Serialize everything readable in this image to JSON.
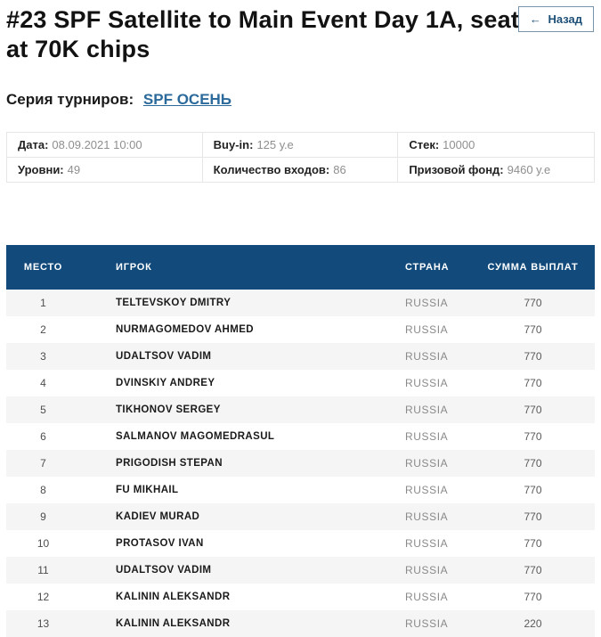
{
  "page": {
    "title": "#23 SPF Satellite to Main Event Day 1A, seat at 70K chips",
    "back_arrow": "←",
    "back_label": "Назад"
  },
  "series": {
    "label": "Серия турниров:",
    "link_text": "SPF ОСЕНЬ"
  },
  "info": {
    "cells": [
      {
        "label": "Дата:",
        "value": "08.09.2021 10:00"
      },
      {
        "label": "Buy-in:",
        "value": "125 у.е"
      },
      {
        "label": "Стек:",
        "value": "10000"
      },
      {
        "label": "Уровни:",
        "value": "49"
      },
      {
        "label": "Количество входов:",
        "value": "86"
      },
      {
        "label": "Призовой фонд:",
        "value": "9460 у.е"
      }
    ]
  },
  "results": {
    "columns": [
      "МЕСТО",
      "ИГРОК",
      "СТРАНА",
      "СУММА ВЫПЛАТ"
    ],
    "rows": [
      {
        "place": "1",
        "player": "TELTEVSKOY DMITRY",
        "country": "RUSSIA",
        "payout": "770"
      },
      {
        "place": "2",
        "player": "NURMAGOMEDOV AHMED",
        "country": "RUSSIA",
        "payout": "770"
      },
      {
        "place": "3",
        "player": "UDALTSOV VADIM",
        "country": "RUSSIA",
        "payout": "770"
      },
      {
        "place": "4",
        "player": "DVINSKIY ANDREY",
        "country": "RUSSIA",
        "payout": "770"
      },
      {
        "place": "5",
        "player": "TIKHONOV SERGEY",
        "country": "RUSSIA",
        "payout": "770"
      },
      {
        "place": "6",
        "player": "SALMANOV MAGOMEDRASUL",
        "country": "RUSSIA",
        "payout": "770"
      },
      {
        "place": "7",
        "player": "PRIGODISH STEPAN",
        "country": "RUSSIA",
        "payout": "770"
      },
      {
        "place": "8",
        "player": "FU MIKHAIL",
        "country": "RUSSIA",
        "payout": "770"
      },
      {
        "place": "9",
        "player": "KADIEV MURAD",
        "country": "RUSSIA",
        "payout": "770"
      },
      {
        "place": "10",
        "player": "PROTASOV IVAN",
        "country": "RUSSIA",
        "payout": "770"
      },
      {
        "place": "11",
        "player": "UDALTSOV VADIM",
        "country": "RUSSIA",
        "payout": "770"
      },
      {
        "place": "12",
        "player": "KALININ ALEKSANDR",
        "country": "RUSSIA",
        "payout": "770"
      },
      {
        "place": "13",
        "player": "KALININ ALEKSANDR",
        "country": "RUSSIA",
        "payout": "220"
      }
    ]
  },
  "colors": {
    "table_header_bg": "#114a7b",
    "row_stripe": "#f5f5f5",
    "link_blue": "#2b6a9b",
    "button_text": "#1d4f77",
    "border": "#e6e6e6",
    "value_gray": "#8f8f8f"
  }
}
